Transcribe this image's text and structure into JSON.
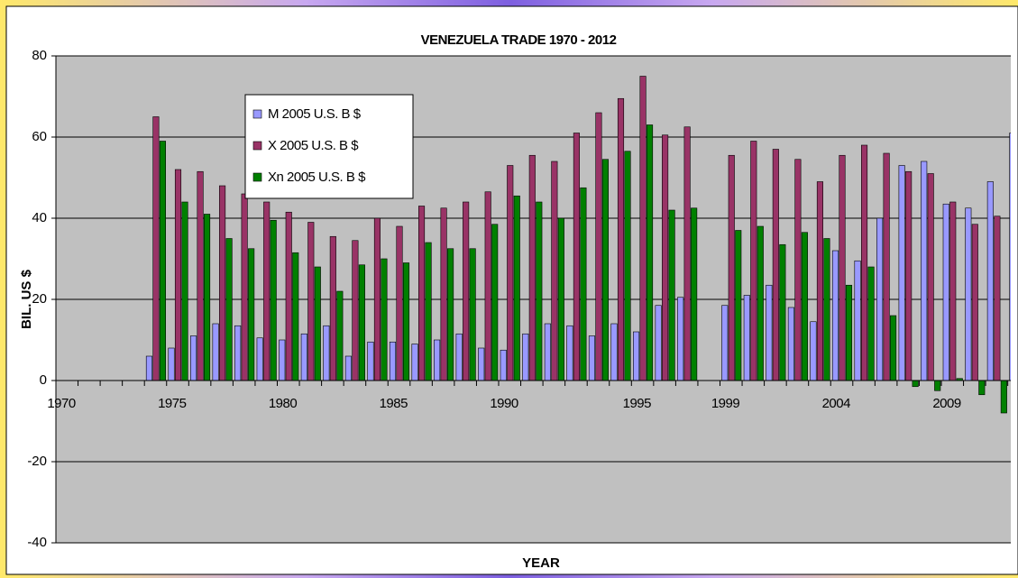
{
  "chart_data": {
    "type": "bar",
    "title": "VENEZUELA TRADE 1970 - 2012",
    "x_label": "YEAR",
    "y_label": "BIL. US $",
    "categories": [
      "1970",
      null,
      null,
      null,
      null,
      "1975",
      null,
      null,
      null,
      null,
      "1980",
      null,
      null,
      null,
      null,
      "1985",
      null,
      null,
      null,
      null,
      "1990",
      null,
      null,
      null,
      null,
      null,
      "1995",
      null,
      null,
      null,
      "1999",
      null,
      null,
      null,
      null,
      "2004",
      null,
      null,
      null,
      null,
      "2009",
      null,
      null,
      null
    ],
    "series": [
      {
        "name": "M 2005 U.S. B $",
        "color": "#9999ff",
        "values": [
          null,
          null,
          null,
          null,
          6,
          8,
          11,
          14,
          13.5,
          10.5,
          10,
          11.5,
          13.5,
          6,
          9.5,
          9.5,
          9,
          10,
          11.5,
          8,
          7.5,
          11.5,
          14,
          13.5,
          11,
          14,
          12,
          18.5,
          20.5,
          null,
          18.5,
          21,
          23.5,
          18,
          14.5,
          32,
          29.5,
          40,
          53,
          54,
          43.5,
          42.5,
          49,
          61
        ]
      },
      {
        "name": "X 2005 U.S. B $",
        "color": "#993366",
        "values": [
          null,
          null,
          null,
          null,
          65,
          52,
          51.5,
          48,
          46,
          44,
          41.5,
          39,
          35.5,
          34.5,
          40,
          38,
          43,
          42.5,
          44,
          46.5,
          53,
          55.5,
          54,
          61,
          66,
          69.5,
          75,
          60.5,
          62.5,
          null,
          55.5,
          59,
          57,
          54.5,
          49,
          55.5,
          58,
          56,
          51.5,
          51,
          44,
          38.5,
          40.5,
          41
        ]
      },
      {
        "name": "Xn 2005 U.S. B $",
        "color": "#008000",
        "values": [
          null,
          null,
          null,
          null,
          59,
          44,
          41,
          35,
          32.5,
          39.5,
          31.5,
          28,
          22,
          28.5,
          30,
          29,
          34,
          32.5,
          32.5,
          38.5,
          45.5,
          44,
          40,
          47.5,
          54.5,
          56.5,
          63,
          42,
          42.5,
          null,
          37,
          38,
          33.5,
          36.5,
          35,
          23.5,
          28,
          16,
          -1.5,
          -2.5,
          0.5,
          -3.5,
          -8,
          null
        ]
      }
    ],
    "ylim": [
      -40,
      80
    ],
    "yticks": [
      -40,
      -20,
      0,
      20,
      40,
      60,
      80
    ],
    "grid": true
  }
}
